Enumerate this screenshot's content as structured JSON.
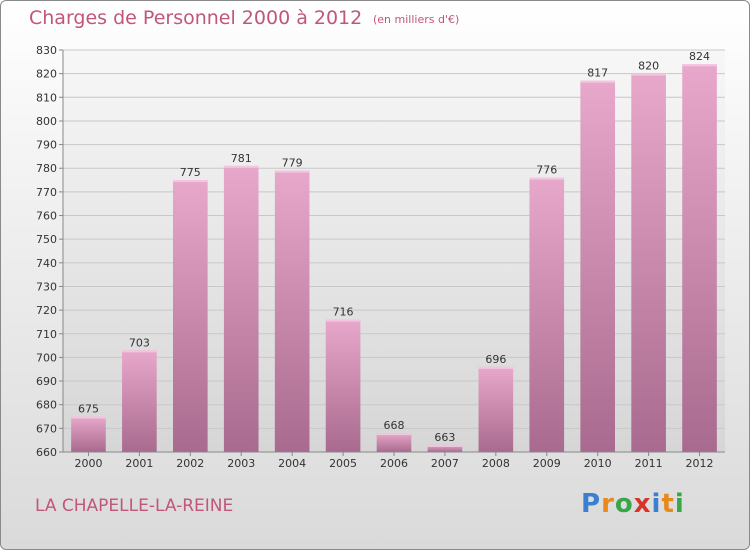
{
  "header": {
    "title": "Charges de Personnel 2000 à 2012",
    "subtitle": "(en milliers d'€)"
  },
  "footer": {
    "commune": "LA CHAPELLE-LA-REINE",
    "logo": [
      "P",
      "r",
      "o",
      "x",
      "i",
      "t",
      "i"
    ],
    "logo_colors": [
      "#3a7fd0",
      "#e88a1a",
      "#3aa64a",
      "#d9342b",
      "#3a7fd0",
      "#e88a1a",
      "#3aa64a"
    ]
  },
  "chart_data": {
    "type": "bar",
    "title": "Charges de Personnel 2000 à 2012",
    "subtitle": "(en milliers d'€)",
    "categories": [
      "2000",
      "2001",
      "2002",
      "2003",
      "2004",
      "2005",
      "2006",
      "2007",
      "2008",
      "2009",
      "2010",
      "2011",
      "2012"
    ],
    "values": [
      675,
      703,
      775,
      781,
      779,
      716,
      668,
      663,
      696,
      776,
      817,
      820,
      824
    ],
    "ylim": [
      660,
      830
    ],
    "yticks": [
      660,
      670,
      680,
      690,
      700,
      710,
      720,
      730,
      740,
      750,
      760,
      770,
      780,
      790,
      800,
      810,
      820,
      830
    ],
    "grid": true,
    "bar_color": "#d98cb3"
  }
}
